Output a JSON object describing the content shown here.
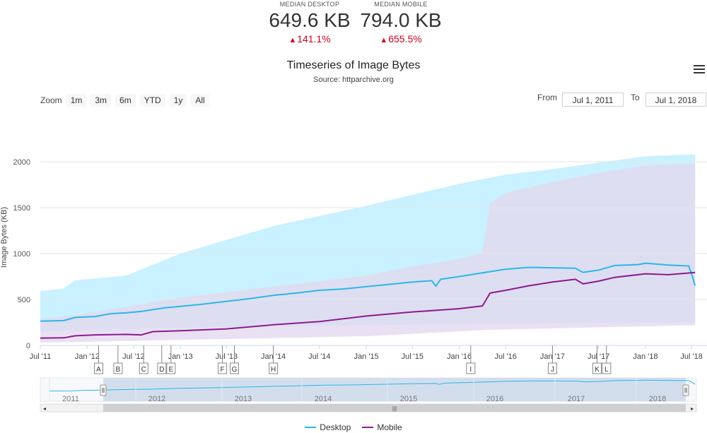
{
  "stats": {
    "desktop": {
      "label": "MEDIAN DESKTOP",
      "value": "649.6 KB",
      "change": "141.1%",
      "color": "#2ab8e6"
    },
    "mobile": {
      "label": "MEDIAN MOBILE",
      "value": "794.0 KB",
      "change": "655.5%",
      "color": "#8b1c8e"
    },
    "change_color": "#d0021b"
  },
  "menu_icon": "hamburger-menu-icon",
  "zoom": {
    "label": "Zoom",
    "buttons": [
      "1m",
      "3m",
      "6m",
      "YTD",
      "1y",
      "All"
    ]
  },
  "range": {
    "from_label": "From",
    "from_value": "Jul 1, 2011",
    "to_label": "To",
    "to_value": "Jul 1, 2018"
  },
  "chart_data": {
    "type": "line",
    "title": "Timeseries of Image Bytes",
    "subtitle": "Source: httparchive.org",
    "ylabel": "Image Bytes (KB)",
    "xlabel": "",
    "ylim": [
      0,
      2000
    ],
    "xlim": [
      "2011-07-01",
      "2018-07-20"
    ],
    "y_ticks": [
      0,
      500,
      1000,
      1500,
      2000
    ],
    "x_ticks": [
      {
        "label": "Jul '11",
        "date": "2011-07-01"
      },
      {
        "label": "Jan '12",
        "date": "2012-01-01"
      },
      {
        "label": "Jul '12",
        "date": "2012-07-01"
      },
      {
        "label": "Jan '13",
        "date": "2013-01-01"
      },
      {
        "label": "Jul '13",
        "date": "2013-07-01"
      },
      {
        "label": "Jan '14",
        "date": "2014-01-01"
      },
      {
        "label": "Jul '14",
        "date": "2014-07-01"
      },
      {
        "label": "Jan '15",
        "date": "2015-01-01"
      },
      {
        "label": "Jul '15",
        "date": "2015-07-01"
      },
      {
        "label": "Jan '16",
        "date": "2016-01-01"
      },
      {
        "label": "Jul '16",
        "date": "2016-07-01"
      },
      {
        "label": "Jan '17",
        "date": "2017-01-01"
      },
      {
        "label": "Jul '17",
        "date": "2017-07-01"
      },
      {
        "label": "Jan '18",
        "date": "2018-01-01"
      },
      {
        "label": "Jul '18",
        "date": "2018-07-01"
      }
    ],
    "grid": true,
    "legend": "bottom",
    "series": [
      {
        "name": "Desktop",
        "color": "#2ab8e6",
        "points": [
          [
            "2011-07-01",
            265
          ],
          [
            "2011-10-01",
            270
          ],
          [
            "2011-11-15",
            305
          ],
          [
            "2012-02-01",
            315
          ],
          [
            "2012-04-01",
            345
          ],
          [
            "2012-06-01",
            355
          ],
          [
            "2012-08-01",
            370
          ],
          [
            "2012-11-01",
            410
          ],
          [
            "2013-01-01",
            425
          ],
          [
            "2013-04-01",
            450
          ],
          [
            "2013-07-01",
            480
          ],
          [
            "2013-10-01",
            510
          ],
          [
            "2014-01-01",
            545
          ],
          [
            "2014-04-01",
            570
          ],
          [
            "2014-07-01",
            600
          ],
          [
            "2014-10-01",
            615
          ],
          [
            "2015-01-01",
            640
          ],
          [
            "2015-04-01",
            665
          ],
          [
            "2015-07-01",
            690
          ],
          [
            "2015-09-15",
            705
          ],
          [
            "2015-10-01",
            645
          ],
          [
            "2015-10-20",
            720
          ],
          [
            "2016-01-01",
            750
          ],
          [
            "2016-04-01",
            790
          ],
          [
            "2016-07-01",
            830
          ],
          [
            "2016-10-01",
            850
          ],
          [
            "2017-01-01",
            845
          ],
          [
            "2017-04-01",
            840
          ],
          [
            "2017-05-01",
            795
          ],
          [
            "2017-07-01",
            820
          ],
          [
            "2017-09-01",
            870
          ],
          [
            "2017-12-01",
            880
          ],
          [
            "2018-01-01",
            895
          ],
          [
            "2018-04-01",
            875
          ],
          [
            "2018-06-20",
            865
          ],
          [
            "2018-07-01",
            780
          ],
          [
            "2018-07-15",
            650
          ]
        ]
      },
      {
        "name": "Mobile",
        "color": "#8b1c8e",
        "points": [
          [
            "2011-07-01",
            80
          ],
          [
            "2011-10-01",
            82
          ],
          [
            "2011-11-15",
            105
          ],
          [
            "2012-02-01",
            115
          ],
          [
            "2012-06-01",
            120
          ],
          [
            "2012-08-01",
            115
          ],
          [
            "2012-09-15",
            150
          ],
          [
            "2013-01-01",
            160
          ],
          [
            "2013-07-01",
            180
          ],
          [
            "2014-01-01",
            225
          ],
          [
            "2014-07-01",
            260
          ],
          [
            "2015-01-01",
            320
          ],
          [
            "2015-07-01",
            365
          ],
          [
            "2016-01-01",
            400
          ],
          [
            "2016-04-01",
            430
          ],
          [
            "2016-05-01",
            570
          ],
          [
            "2016-07-01",
            600
          ],
          [
            "2016-10-01",
            650
          ],
          [
            "2017-01-01",
            690
          ],
          [
            "2017-04-01",
            720
          ],
          [
            "2017-05-01",
            670
          ],
          [
            "2017-07-01",
            700
          ],
          [
            "2017-09-01",
            740
          ],
          [
            "2018-01-01",
            780
          ],
          [
            "2018-04-01",
            770
          ],
          [
            "2018-07-15",
            794
          ]
        ]
      }
    ],
    "bands": [
      {
        "series": "Desktop",
        "color": "#bfeeff",
        "upper": [
          [
            "2011-07-01",
            590
          ],
          [
            "2011-10-01",
            620
          ],
          [
            "2011-11-15",
            710
          ],
          [
            "2012-06-01",
            760
          ],
          [
            "2013-01-01",
            1000
          ],
          [
            "2014-01-01",
            1300
          ],
          [
            "2015-01-01",
            1520
          ],
          [
            "2015-07-01",
            1640
          ],
          [
            "2016-01-01",
            1760
          ],
          [
            "2016-07-01",
            1860
          ],
          [
            "2017-01-01",
            1920
          ],
          [
            "2017-07-01",
            1990
          ],
          [
            "2018-01-01",
            2060
          ],
          [
            "2018-07-15",
            2080
          ]
        ],
        "lower": [
          [
            "2011-07-01",
            150
          ],
          [
            "2013-01-01",
            190
          ],
          [
            "2015-01-01",
            220
          ],
          [
            "2017-01-01",
            240
          ],
          [
            "2018-07-15",
            250
          ]
        ]
      },
      {
        "series": "Mobile",
        "color": "#e4d9f0",
        "upper": [
          [
            "2011-07-01",
            290
          ],
          [
            "2011-11-15",
            330
          ],
          [
            "2012-06-01",
            420
          ],
          [
            "2013-01-01",
            520
          ],
          [
            "2014-01-01",
            640
          ],
          [
            "2015-01-01",
            760
          ],
          [
            "2015-07-01",
            860
          ],
          [
            "2016-01-01",
            940
          ],
          [
            "2016-04-01",
            1010
          ],
          [
            "2016-05-01",
            1550
          ],
          [
            "2016-07-01",
            1660
          ],
          [
            "2017-01-01",
            1780
          ],
          [
            "2017-07-01",
            1880
          ],
          [
            "2018-01-01",
            1960
          ],
          [
            "2018-07-15",
            1980
          ]
        ],
        "lower": [
          [
            "2011-07-01",
            30
          ],
          [
            "2013-01-01",
            60
          ],
          [
            "2015-01-01",
            100
          ],
          [
            "2016-05-01",
            170
          ],
          [
            "2018-07-15",
            220
          ]
        ]
      }
    ],
    "flags": [
      {
        "label": "A",
        "date": "2012-02-15"
      },
      {
        "label": "B",
        "date": "2012-05-01"
      },
      {
        "label": "C",
        "date": "2012-08-10"
      },
      {
        "label": "D",
        "date": "2012-10-20"
      },
      {
        "label": "E",
        "date": "2012-11-25"
      },
      {
        "label": "F",
        "date": "2013-06-15"
      },
      {
        "label": "G",
        "date": "2013-08-01"
      },
      {
        "label": "H",
        "date": "2014-01-01"
      },
      {
        "label": "I",
        "date": "2016-02-15"
      },
      {
        "label": "J",
        "date": "2017-01-01"
      },
      {
        "label": "K",
        "date": "2017-06-25"
      },
      {
        "label": "L",
        "date": "2017-08-01"
      }
    ],
    "navigator": {
      "year_labels": [
        "2011",
        "2012",
        "2013",
        "2014",
        "2015",
        "2016",
        "2017",
        "2018"
      ],
      "selected_range": [
        "2011-07-01",
        "2018-07-01"
      ]
    }
  }
}
